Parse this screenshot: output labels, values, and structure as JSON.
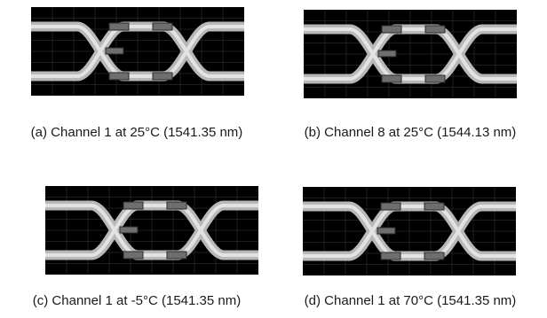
{
  "figure": {
    "panels": [
      {
        "id": "a",
        "caption": "(a) Channel 1 at 25°C (1541.35 nm)"
      },
      {
        "id": "b",
        "caption": "(b) Channel 8 at 25°C (1544.13 nm)"
      },
      {
        "id": "c",
        "caption": "(c) Channel 1 at -5°C (1541.35 nm)"
      },
      {
        "id": "d",
        "caption": "(d) Channel 1 at 70°C (1541.35 nm)"
      }
    ]
  },
  "colors": {
    "background": "#000000",
    "trace": "#c8c8c8",
    "marker": "#6e6e6e"
  }
}
